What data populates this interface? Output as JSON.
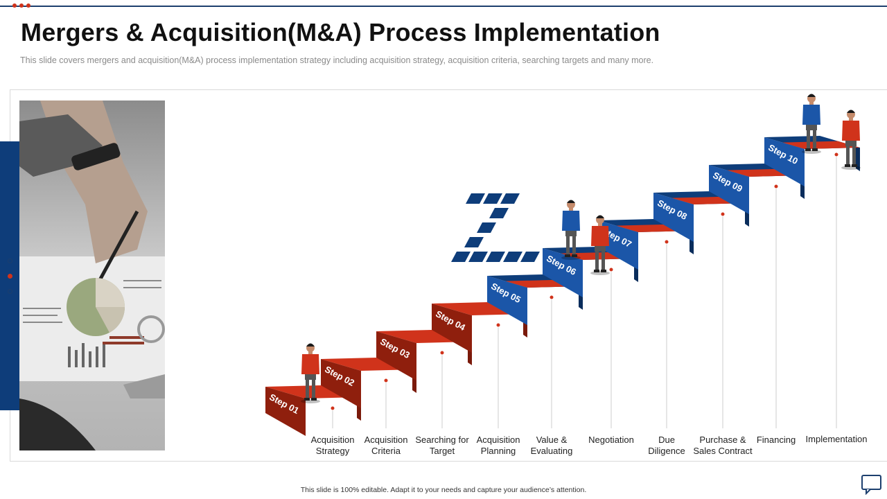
{
  "slide": {
    "title": "Mergers & Acquisition(M&A) Process Implementation",
    "subtitle": "This slide covers mergers and acquisition(M&A) process implementation strategy including acquisition strategy, acquisition criteria, searching targets and many more.",
    "footer": "This slide is 100% editable. Adapt it to your needs and capture your audience’s attention."
  },
  "colors": {
    "red": "#d0331b",
    "red_dark": "#8f1f0d",
    "blue": "#0e3d7a",
    "blue_mid": "#1b56a8"
  },
  "steps": [
    {
      "tag": "Step 01",
      "label_lines": [
        "Acquisition",
        "Strategy"
      ]
    },
    {
      "tag": "Step 02",
      "label_lines": [
        "Acquisition",
        "Criteria"
      ]
    },
    {
      "tag": "Step 03",
      "label_lines": [
        "Searching for",
        "Target"
      ]
    },
    {
      "tag": "Step 04",
      "label_lines": [
        "Acquisition",
        "Planning"
      ]
    },
    {
      "tag": "Step 05",
      "label_lines": [
        "Value &",
        "Evaluating"
      ]
    },
    {
      "tag": "Step 06",
      "label_lines": [
        "Negotiation"
      ]
    },
    {
      "tag": "Step 07",
      "label_lines": [
        "Due",
        "Diligence"
      ]
    },
    {
      "tag": "Step 08",
      "label_lines": [
        "Purchase &",
        "Sales Contract"
      ]
    },
    {
      "tag": "Step 09",
      "label_lines": [
        "Financing"
      ]
    },
    {
      "tag": "Step 10",
      "label_lines": [
        "Implementation"
      ]
    }
  ]
}
